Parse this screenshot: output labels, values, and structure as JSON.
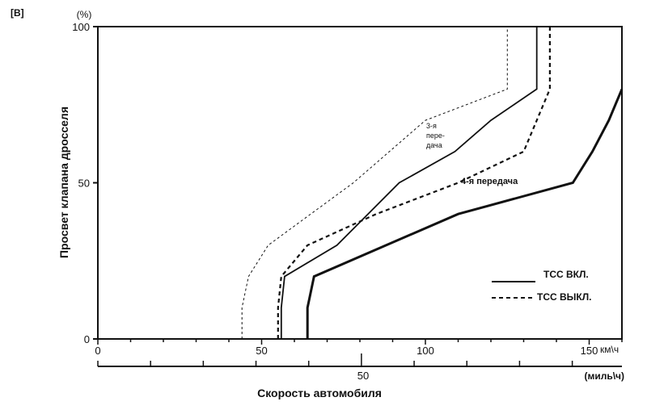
{
  "figure_label": "[B]",
  "chart_data": {
    "type": "line",
    "title": "",
    "ylabel": "Просвет клапана дросселя",
    "yunit": "(%)",
    "xlabel": "Скорость автомобиля",
    "xunit_kmh": "км\\ч",
    "xunit_mph": "(миль\\ч)",
    "xlim_kmh": [
      0,
      160
    ],
    "ylim": [
      0,
      100
    ],
    "yticks": [
      {
        "v": 0,
        "label": "0"
      },
      {
        "v": 50,
        "label": "50"
      },
      {
        "v": 100,
        "label": "100"
      }
    ],
    "xticks_kmh": [
      {
        "v": 0,
        "label": "0"
      },
      {
        "v": 50,
        "label": "50"
      },
      {
        "v": 100,
        "label": "100"
      },
      {
        "v": 150,
        "label": "150"
      }
    ],
    "mph_major_label": "50",
    "grid": false,
    "annotations": {
      "third_gear": [
        "3-я",
        "пере-",
        "дача"
      ],
      "fourth_gear": "4-я передача"
    },
    "legend": {
      "placement": "bottom-right",
      "on": "TCC ВКЛ.",
      "off": "TCC ВЫКЛ."
    },
    "series": [
      {
        "key": "g3_off",
        "style": "dashed-thin",
        "color": "#111111",
        "x": [
          44,
          44,
          46,
          52,
          78,
          100,
          125,
          125
        ],
        "y": [
          0,
          10,
          20,
          30,
          50,
          70,
          80,
          100
        ]
      },
      {
        "key": "g3_on",
        "style": "solid",
        "color": "#111111",
        "x": [
          56,
          56,
          57,
          73,
          92,
          109,
          120,
          134,
          134
        ],
        "y": [
          0,
          10,
          20,
          30,
          50,
          60,
          70,
          80,
          100
        ]
      },
      {
        "key": "g4_off",
        "style": "dashed",
        "color": "#111111",
        "x": [
          55,
          55,
          56,
          64,
          85,
          110,
          130,
          138,
          138
        ],
        "y": [
          0,
          10,
          20,
          30,
          40,
          50,
          60,
          80,
          100
        ]
      },
      {
        "key": "g4_on",
        "style": "thick",
        "color": "#111111",
        "x": [
          64,
          64,
          66,
          110,
          145,
          151,
          156,
          160
        ],
        "y": [
          0,
          10,
          20,
          40,
          50,
          60,
          70,
          80
        ]
      }
    ]
  }
}
